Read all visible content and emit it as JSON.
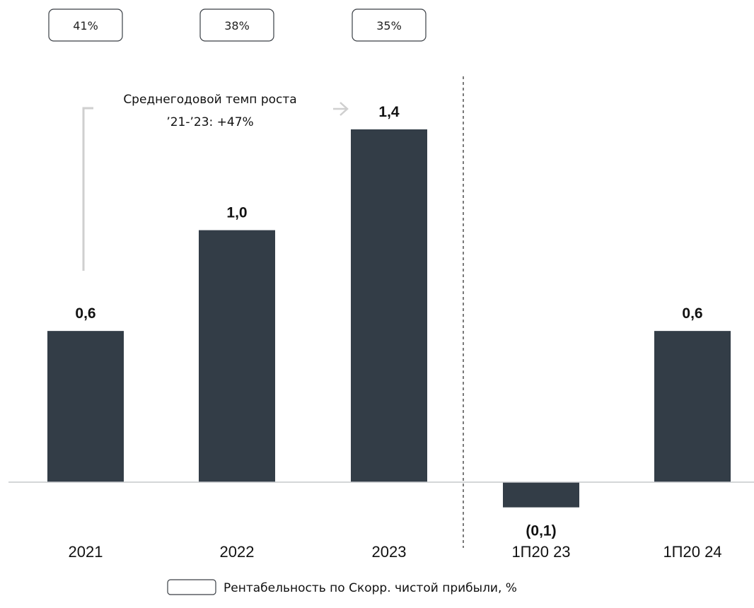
{
  "chart_data": {
    "type": "bar",
    "categories": [
      "2021",
      "2022",
      "2023",
      "1П2023",
      "1П2024"
    ],
    "values": [
      0.6,
      1.0,
      1.4,
      -0.1,
      0.6
    ],
    "value_labels": [
      "0,6",
      "1,0",
      "1,4",
      "(0,1)",
      "0,6"
    ],
    "category_labels": [
      "2021",
      "2022",
      "2023",
      "1П20 23",
      "1П20 24"
    ],
    "margins": [
      "41%",
      "38%",
      "35%"
    ],
    "ylim": [
      -0.12,
      1.45
    ],
    "grid": false,
    "divider_after_index": 2,
    "annotation": {
      "line1": "Среднегодовой темп роста",
      "line2": "’21-’23: +47%"
    },
    "legend": {
      "label": "Рентабельность по Скорр. чистой прибыли, %",
      "placement": "bottom-center"
    },
    "colors": {
      "bar": "#333d47",
      "box_border": "#3a3f45",
      "arrow": "#cfcfcf"
    }
  }
}
